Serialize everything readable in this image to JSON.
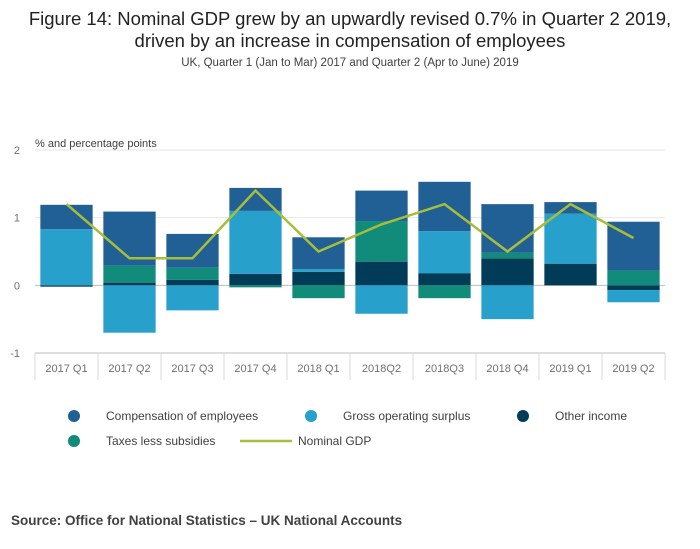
{
  "chart_data": {
    "type": "bar",
    "stacked": true,
    "title": "Figure 14: Nominal GDP grew by an upwardly revised 0.7% in Quarter 2 2019, driven by an increase in compensation of employees",
    "subtitle": "UK, Quarter 1 (Jan to Mar) 2017 and Quarter 2 (Apr to June) 2019",
    "ylabel": "% and percentage points",
    "ylim": [
      -1,
      2
    ],
    "yticks": [
      -1,
      0,
      1,
      2
    ],
    "categories": [
      "2017 Q1",
      "2017 Q2",
      "2017 Q3",
      "2017 Q4",
      "2018 Q1",
      "2018Q2",
      "2018Q3",
      "2018 Q4",
      "2019 Q1",
      "2019 Q2"
    ],
    "series": [
      {
        "name": "Other income",
        "color": "#003c57",
        "kind": "bar",
        "values": [
          -0.02,
          0.04,
          0.08,
          0.17,
          0.2,
          0.35,
          0.18,
          0.4,
          0.32,
          -0.07
        ]
      },
      {
        "name": "Taxes less subsidies",
        "color": "#118c7b",
        "kind": "bar",
        "values": [
          0.0,
          0.25,
          0.18,
          -0.03,
          -0.19,
          0.6,
          -0.19,
          0.08,
          0.0,
          0.22
        ]
      },
      {
        "name": "Gross operating surplus",
        "color": "#27a0cc",
        "kind": "bar",
        "values": [
          0.83,
          -0.7,
          -0.37,
          0.93,
          0.04,
          -0.42,
          0.62,
          -0.5,
          0.74,
          -0.18
        ]
      },
      {
        "name": "Compensation of employees",
        "color": "#206095",
        "kind": "bar",
        "values": [
          0.36,
          0.8,
          0.5,
          0.34,
          0.47,
          0.45,
          0.73,
          0.72,
          0.17,
          0.72
        ]
      },
      {
        "name": "Nominal GDP",
        "color": "#a8bd3a",
        "kind": "line",
        "values": [
          1.2,
          0.4,
          0.4,
          1.4,
          0.5,
          0.9,
          1.2,
          0.5,
          1.2,
          0.7
        ]
      }
    ],
    "legend_order": [
      "Compensation of employees",
      "Gross operating surplus",
      "Other income",
      "Taxes less subsidies",
      "Nominal GDP"
    ],
    "grid": true,
    "legend_position": "bottom"
  },
  "source": "Source: Office for National Statistics – UK National Accounts"
}
